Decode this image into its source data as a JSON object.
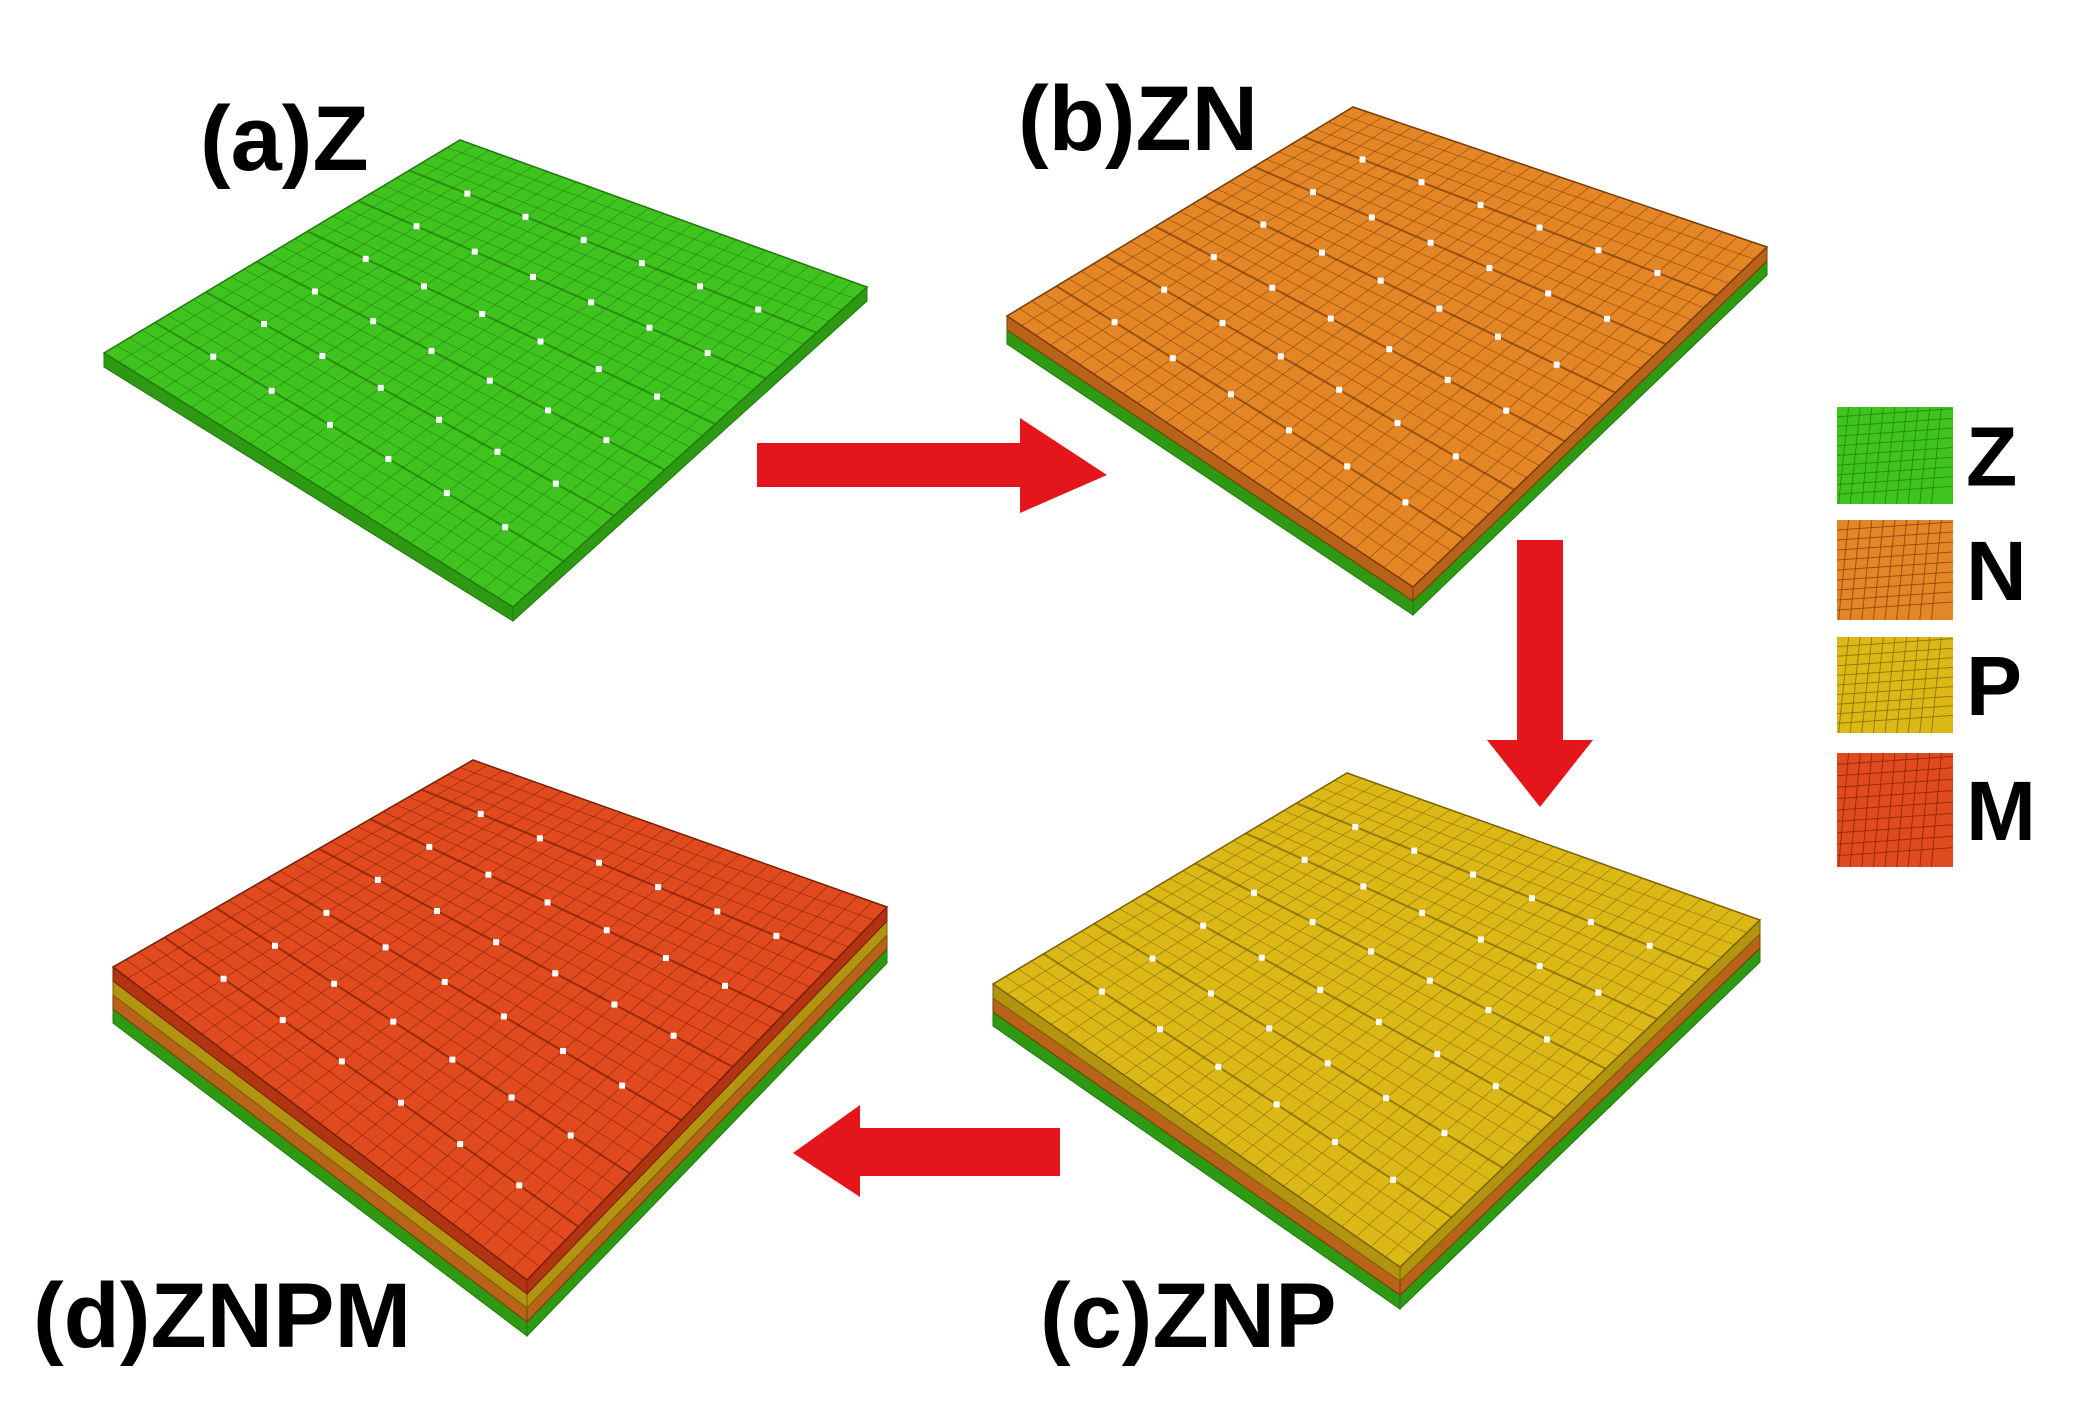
{
  "panels": [
    {
      "label": "(a)Z"
    },
    {
      "label": "(b)ZN"
    },
    {
      "label": "(c)ZNP"
    },
    {
      "label": "(d)ZNPM"
    }
  ],
  "legend": [
    {
      "label": "Z"
    },
    {
      "label": "N"
    },
    {
      "label": "P"
    },
    {
      "label": "M"
    }
  ]
}
